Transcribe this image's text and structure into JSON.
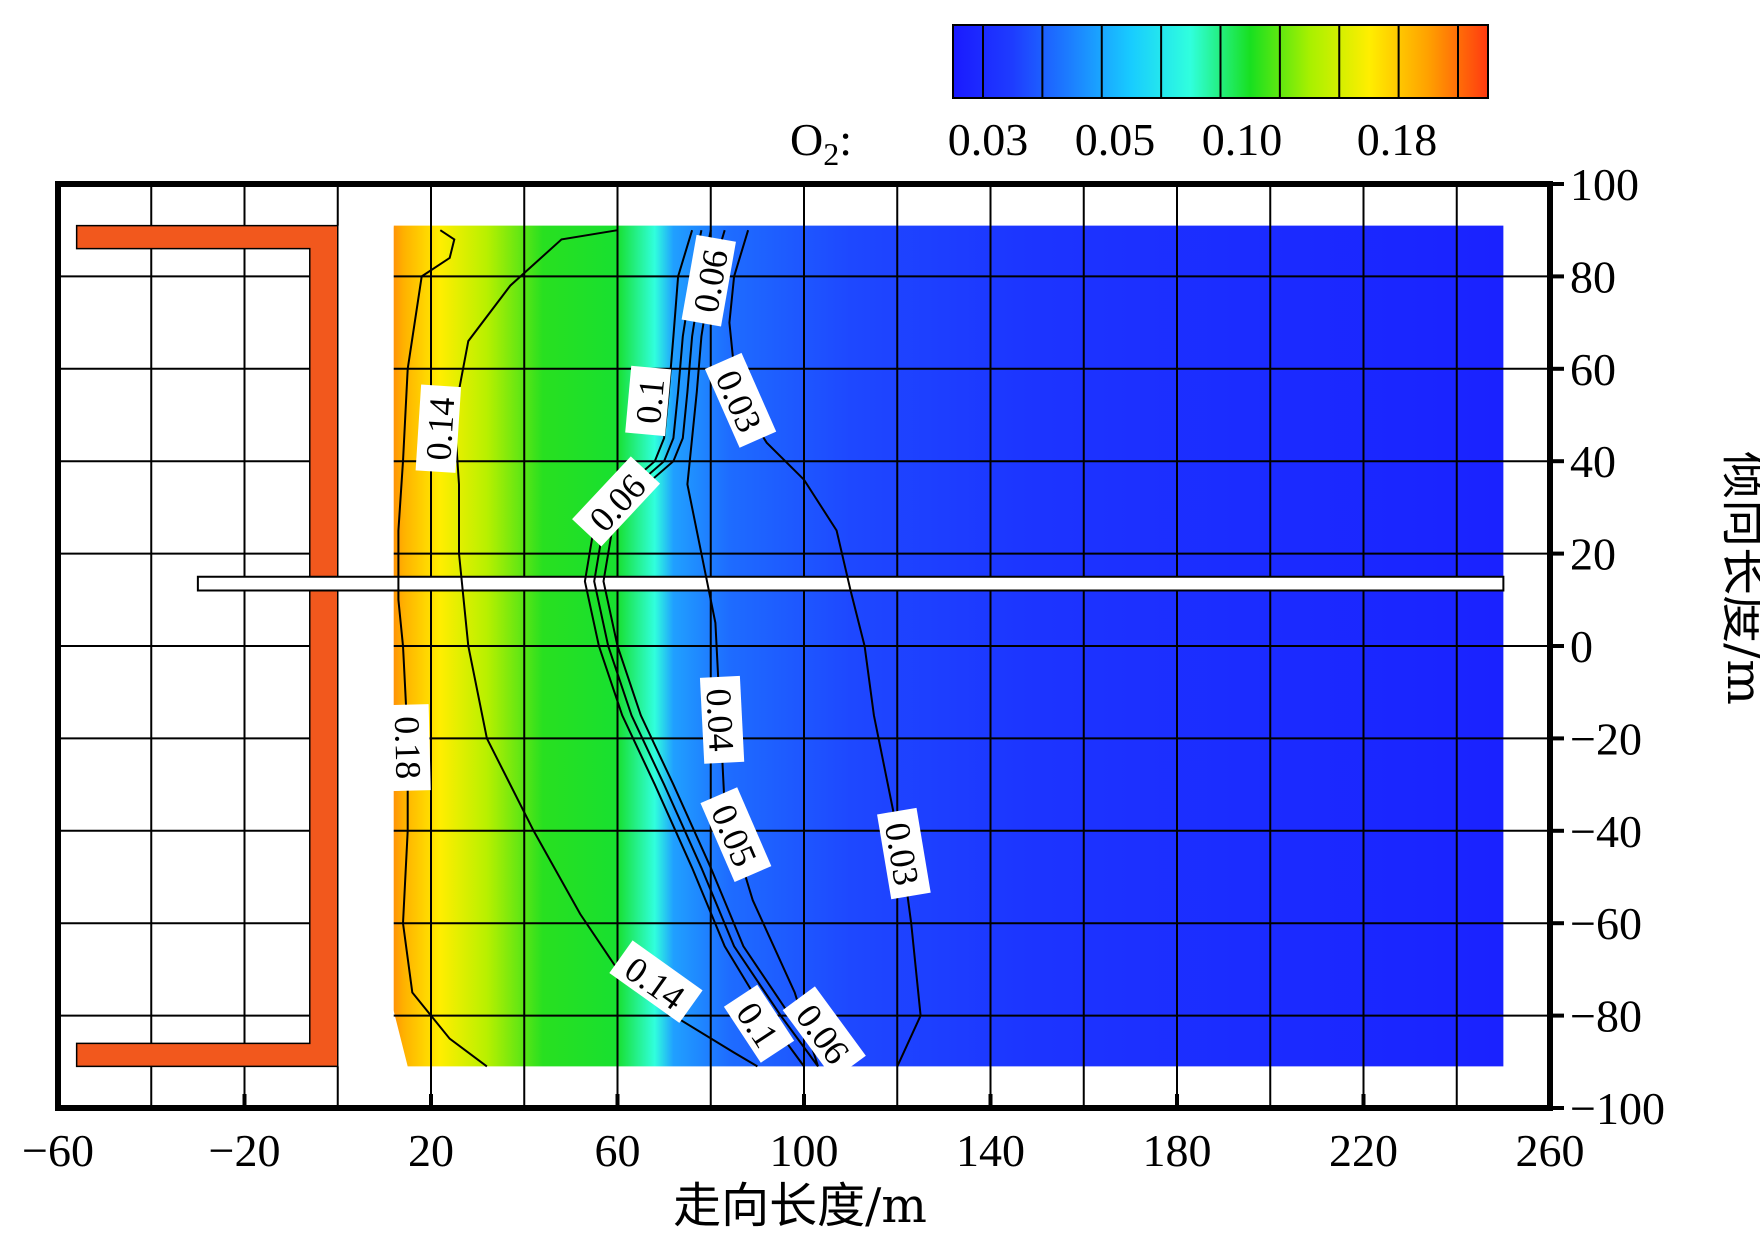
{
  "chart_data": {
    "type": "heatmap",
    "title": "",
    "xlabel": "走向长度/m",
    "ylabel": "倾向长度/m",
    "xlim": [
      -60,
      260
    ],
    "ylim": [
      -100,
      100
    ],
    "x_ticks": [
      -60,
      -20,
      20,
      60,
      100,
      140,
      180,
      220,
      260
    ],
    "y_ticks": [
      100,
      80,
      60,
      40,
      20,
      0,
      -20,
      -40,
      -60,
      -80,
      -100
    ],
    "x_tick_labels": [
      "−60",
      "−20",
      "20",
      "60",
      "100",
      "140",
      "180",
      "220",
      "260"
    ],
    "y_tick_labels": [
      "100",
      "80",
      "60",
      "40",
      "20",
      "0",
      "−20",
      "−40",
      "−60",
      "−80",
      "−100"
    ],
    "grid": true,
    "legend_position": "top-right",
    "colorbar": {
      "quantity": "O",
      "subscript": "2",
      "suffix": ":",
      "tick_labels": [
        "0.03",
        "0.05",
        "0.10",
        "0.18"
      ],
      "tick_values": [
        0.03,
        0.05,
        0.1,
        0.18
      ],
      "colors": [
        "#1a1aff",
        "#1e3cff",
        "#1c80ff",
        "#18ccff",
        "#30ffdd",
        "#18e020",
        "#a8f000",
        "#ffee00",
        "#ffa000",
        "#ff3a10"
      ]
    },
    "gob_data_extent": {
      "x": [
        0,
        250
      ],
      "y": [
        -91,
        91
      ]
    },
    "contours": [
      {
        "level": 0.18,
        "label": "0.18",
        "label_positions": [
          [
            15,
            -22
          ]
        ],
        "points": [
          [
            22,
            90
          ],
          [
            25,
            88
          ],
          [
            24,
            84
          ],
          [
            18,
            80
          ],
          [
            15,
            60
          ],
          [
            14,
            40
          ],
          [
            13,
            25
          ],
          [
            13,
            10
          ],
          [
            14,
            0
          ],
          [
            15,
            -20
          ],
          [
            15,
            -40
          ],
          [
            14,
            -60
          ],
          [
            16,
            -75
          ],
          [
            24,
            -85
          ],
          [
            32,
            -91
          ]
        ]
      },
      {
        "level": 0.14,
        "label": "0.14",
        "label_positions": [
          [
            22,
            47
          ],
          [
            68,
            -73
          ]
        ],
        "points": [
          [
            60,
            90
          ],
          [
            48,
            88
          ],
          [
            37,
            78
          ],
          [
            28,
            66
          ],
          [
            25,
            50
          ],
          [
            26,
            35
          ],
          [
            26,
            20
          ],
          [
            28,
            0
          ],
          [
            32,
            -20
          ],
          [
            42,
            -40
          ],
          [
            52,
            -58
          ],
          [
            60,
            -70
          ],
          [
            72,
            -80
          ],
          [
            85,
            -88
          ],
          [
            90,
            -91
          ]
        ]
      },
      {
        "level": 0.1,
        "label": "0.1",
        "label_positions": [
          [
            67,
            53
          ],
          [
            90,
            -82
          ]
        ],
        "points": [
          [
            76,
            90
          ],
          [
            73,
            80
          ],
          [
            72,
            67
          ],
          [
            71,
            55
          ],
          [
            70,
            45
          ],
          [
            68,
            40
          ],
          [
            60,
            33
          ],
          [
            55,
            26
          ],
          [
            53,
            14
          ],
          [
            56,
            0
          ],
          [
            61,
            -15
          ],
          [
            68,
            -30
          ],
          [
            76,
            -48
          ],
          [
            83,
            -65
          ],
          [
            92,
            -80
          ],
          [
            100,
            -91
          ]
        ]
      },
      {
        "level": 0.06,
        "label": "0.06",
        "label_positions": [
          [
            80,
            79
          ],
          [
            60,
            31
          ],
          [
            104,
            -84
          ]
        ],
        "points": [
          [
            78,
            90
          ],
          [
            76,
            80
          ],
          [
            74,
            67
          ],
          [
            73,
            55
          ],
          [
            72,
            45
          ],
          [
            70,
            40
          ],
          [
            62,
            33
          ],
          [
            57,
            26
          ],
          [
            55,
            14
          ],
          [
            58,
            0
          ],
          [
            63,
            -15
          ],
          [
            70,
            -30
          ],
          [
            78,
            -48
          ],
          [
            85,
            -65
          ],
          [
            95,
            -80
          ],
          [
            103,
            -91
          ]
        ]
      },
      {
        "level": 0.05,
        "label": "0.05",
        "label_positions": [
          [
            85,
            -41
          ]
        ],
        "points": [
          [
            80,
            90
          ],
          [
            78,
            80
          ],
          [
            76,
            67
          ],
          [
            75,
            55
          ],
          [
            74,
            45
          ],
          [
            72,
            40
          ],
          [
            64,
            33
          ],
          [
            59,
            26
          ],
          [
            57,
            14
          ],
          [
            60,
            0
          ],
          [
            65,
            -15
          ],
          [
            72,
            -30
          ],
          [
            80,
            -48
          ],
          [
            87,
            -65
          ],
          [
            97,
            -80
          ],
          [
            105,
            -91
          ]
        ]
      },
      {
        "level": 0.04,
        "label": "0.04",
        "label_positions": [
          [
            82,
            -16
          ]
        ],
        "points": [
          [
            83,
            90
          ],
          [
            80,
            80
          ],
          [
            78,
            67
          ],
          [
            77,
            55
          ],
          [
            76,
            45
          ],
          [
            75,
            35
          ],
          [
            78,
            20
          ],
          [
            81,
            5
          ],
          [
            82,
            -15
          ],
          [
            83,
            -35
          ],
          [
            89,
            -55
          ],
          [
            98,
            -75
          ],
          [
            103,
            -91
          ]
        ]
      },
      {
        "level": 0.03,
        "label": "0.03",
        "label_positions": [
          [
            86,
            53
          ],
          [
            121,
            -45
          ]
        ],
        "points": [
          [
            88,
            90
          ],
          [
            85,
            80
          ],
          [
            84,
            70
          ],
          [
            85,
            60
          ],
          [
            87,
            52
          ],
          [
            92,
            44
          ],
          [
            100,
            36
          ],
          [
            107,
            25
          ],
          [
            110,
            12
          ],
          [
            113,
            0
          ],
          [
            115,
            -15
          ],
          [
            118,
            -30
          ],
          [
            121,
            -45
          ],
          [
            123,
            -60
          ],
          [
            125,
            -80
          ],
          [
            120,
            -91
          ]
        ]
      }
    ]
  }
}
